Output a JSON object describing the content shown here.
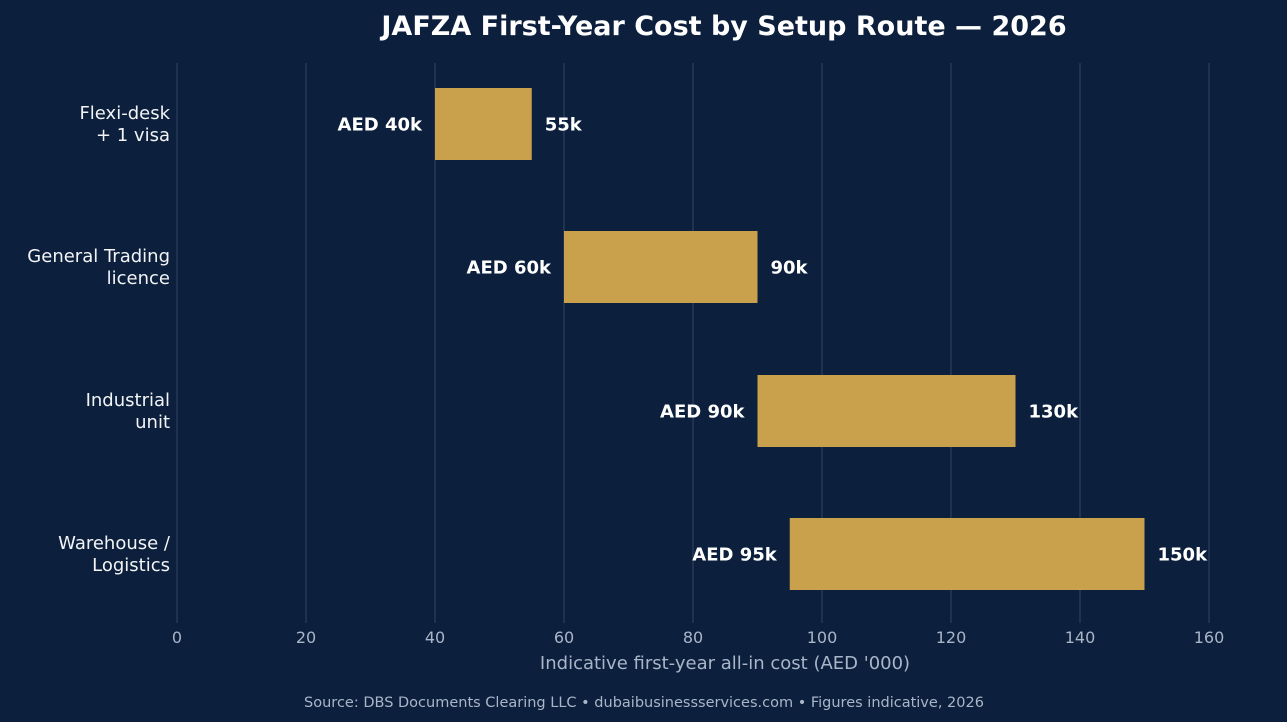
{
  "colors": {
    "background": "#0c1f3c",
    "bar": "#c9a14d",
    "grid": "#2a3d5c",
    "text": "#ffffff",
    "muted_text": "#a9b6c9"
  },
  "chart_data": {
    "type": "bar",
    "orientation": "horizontal",
    "style": "floating-range",
    "title": "JAFZA First-Year Cost by Setup Route — 2026",
    "xlabel": "Indicative first-year all-in cost (AED '000)",
    "ylabel": "",
    "xlim": [
      0,
      160
    ],
    "x_ticks": [
      0,
      20,
      40,
      60,
      80,
      100,
      120,
      140,
      160
    ],
    "grid": "vertical",
    "legend": "none",
    "categories": [
      [
        "Flexi-desk",
        "+ 1 visa"
      ],
      [
        "General Trading",
        "licence"
      ],
      [
        "Industrial",
        "unit"
      ],
      [
        "Warehouse /",
        "Logistics"
      ]
    ],
    "series": [
      {
        "low": [
          40,
          60,
          90,
          95
        ],
        "high": [
          55,
          90,
          130,
          150
        ],
        "low_labels": [
          "AED 40k",
          "AED 60k",
          "AED 90k",
          "AED 95k"
        ],
        "high_labels": [
          "55k",
          "90k",
          "130k",
          "150k"
        ]
      }
    ]
  },
  "footer": {
    "source": "Source: DBS Documents Clearing LLC  •  dubaibusinessservices.com  •  Figures indicative, 2026"
  }
}
